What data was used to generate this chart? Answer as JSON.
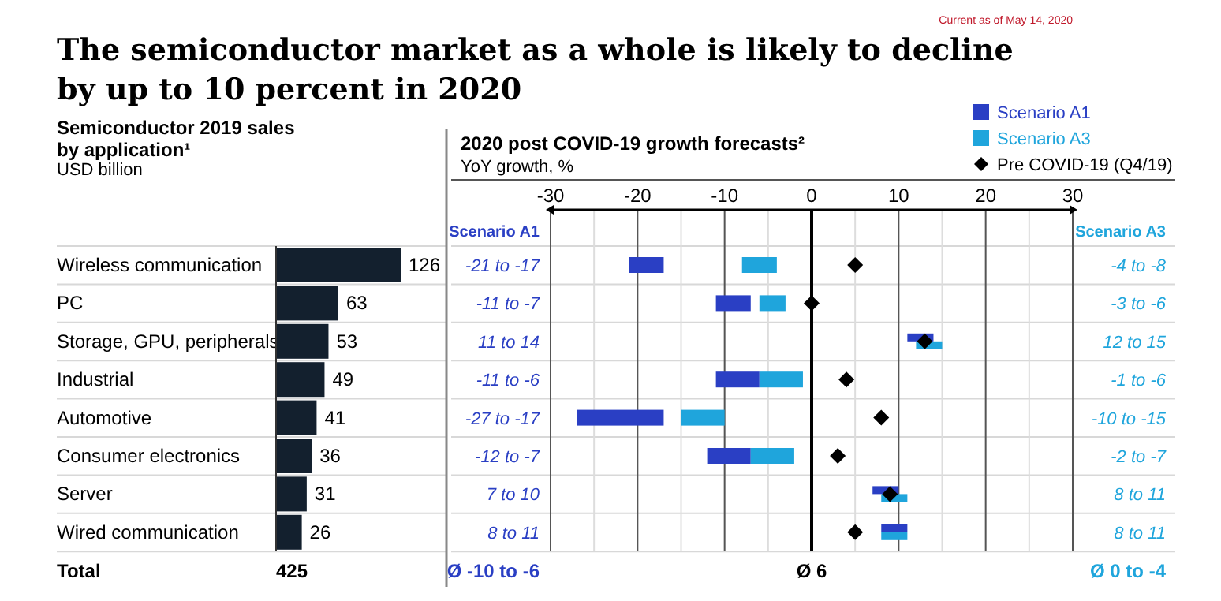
{
  "chart_data": [
    {
      "type": "bar",
      "orientation": "horizontal",
      "title": "The semiconductor market as a whole is likely to decline by up to 10 percent in 2020",
      "subtitle": "Semiconductor 2019 sales by application¹",
      "categories": [
        "Wireless communication",
        "PC",
        "Storage, GPU, peripherals",
        "Industrial",
        "Automotive",
        "Consumer electronics",
        "Server",
        "Wired communication"
      ],
      "values": [
        126,
        63,
        53,
        49,
        41,
        36,
        31,
        26
      ],
      "color": "#13202e",
      "data_labels": true,
      "annotations": [
        "Current as of May 14, 2020",
        "USD billion",
        "Total",
        "425"
      ]
    },
    {
      "type": "bar",
      "orientation": "horizontal",
      "title": "2020 post COVID-19 growth forecasts²",
      "subtitle": "YoY growth, %",
      "categories": [
        null,
        null,
        null,
        null,
        null,
        null,
        null,
        null
      ],
      "series": [
        {
          "name": "Scenario A1",
          "type": "bar",
          "color": "#2a3fc4",
          "base": [
            -21,
            -11,
            11,
            -11,
            -27,
            -12,
            7,
            8
          ],
          "values": [
            4,
            4,
            3,
            5,
            10,
            5,
            3,
            3
          ]
        },
        {
          "name": "Scenario A3",
          "type": "bar",
          "color": "#1fa5dc",
          "base": [
            -8,
            -6,
            12,
            -6,
            -15,
            -7,
            8,
            8
          ],
          "values": [
            4,
            3,
            3,
            5,
            5,
            5,
            3,
            3
          ]
        },
        {
          "name": "Pre COVID-19 (Q4/19)",
          "type": "scatter",
          "marker": "diamond",
          "color": "#000000",
          "values": [
            5,
            0,
            13,
            4,
            8,
            3,
            9,
            5
          ]
        }
      ],
      "xlim": [
        -30,
        30
      ],
      "xticks": [
        -30,
        {
          "value": -25,
          "label": null
        },
        -20,
        {
          "value": -15,
          "label": null
        },
        -10,
        {
          "value": -5,
          "label": null
        },
        0,
        {
          "value": 5,
          "label": null
        },
        10,
        {
          "value": 15,
          "label": null
        },
        20,
        {
          "value": 25,
          "label": null
        },
        30
      ],
      "grid": "x",
      "legend": "top right",
      "annotations": [
        "Scenario A1",
        "Scenario A3",
        "Ø -10 to -6",
        "Ø 6",
        "Ø 0 to -4",
        "-21 to -17",
        "-11 to -7",
        "11 to 14",
        "-11 to -6",
        "-27 to -17",
        "-12 to -7",
        "7 to 10",
        "8 to 11",
        "-4 to -8",
        "-3 to -6",
        "12 to 15",
        "-1 to -6",
        "-10 to -15",
        "-2 to -7",
        "8 to 11",
        "8 to 11"
      ]
    }
  ]
}
